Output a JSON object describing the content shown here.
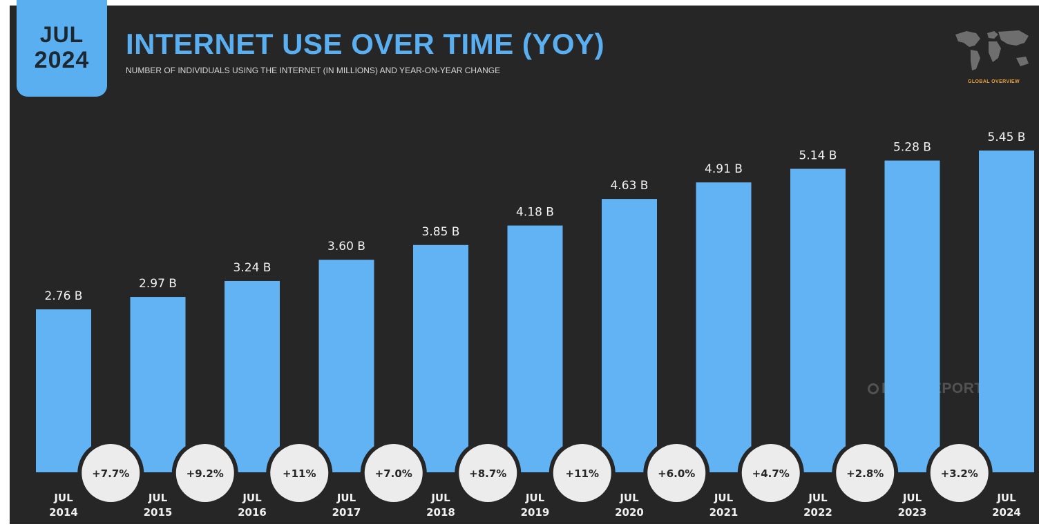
{
  "header": {
    "date_month": "JUL",
    "date_year": "2024",
    "overview_label": "GLOBAL OVERVIEW",
    "watermark": "DATAREPORTAL"
  },
  "colors": {
    "background": "#262626",
    "bar": "#62b3f4",
    "accent": "#5aaff0",
    "circle": "#ececec",
    "label": "#f2f2f2",
    "overview": "#e8a23a"
  },
  "icons": {
    "map": "world-map-icon",
    "watermark": "datareportal-logo-icon"
  },
  "chart_data": {
    "type": "bar",
    "title": "INTERNET USE OVER TIME (YOY)",
    "subtitle": "NUMBER OF INDIVIDUALS USING THE INTERNET (IN MILLIONS) AND YEAR-ON-YEAR CHANGE",
    "categories": [
      [
        "JUL",
        "2014"
      ],
      [
        "JUL",
        "2015"
      ],
      [
        "JUL",
        "2016"
      ],
      [
        "JUL",
        "2017"
      ],
      [
        "JUL",
        "2018"
      ],
      [
        "JUL",
        "2019"
      ],
      [
        "JUL",
        "2020"
      ],
      [
        "JUL",
        "2021"
      ],
      [
        "JUL",
        "2022"
      ],
      [
        "JUL",
        "2023"
      ],
      [
        "JUL",
        "2024"
      ]
    ],
    "values": [
      2.76,
      2.97,
      3.24,
      3.6,
      3.85,
      4.18,
      4.63,
      4.91,
      5.14,
      5.28,
      5.45
    ],
    "value_labels": [
      "2.76 B",
      "2.97 B",
      "3.24 B",
      "3.60 B",
      "3.85 B",
      "4.18 B",
      "4.63 B",
      "4.91 B",
      "5.14 B",
      "5.28 B",
      "5.45 B"
    ],
    "yoy_change": [
      "+7.7%",
      "+9.2%",
      "+11%",
      "+7.0%",
      "+8.7%",
      "+11%",
      "+6.0%",
      "+4.7%",
      "+2.8%",
      "+3.2%"
    ],
    "ylim": [
      0,
      5.45
    ],
    "grid": false,
    "legend": "none"
  }
}
